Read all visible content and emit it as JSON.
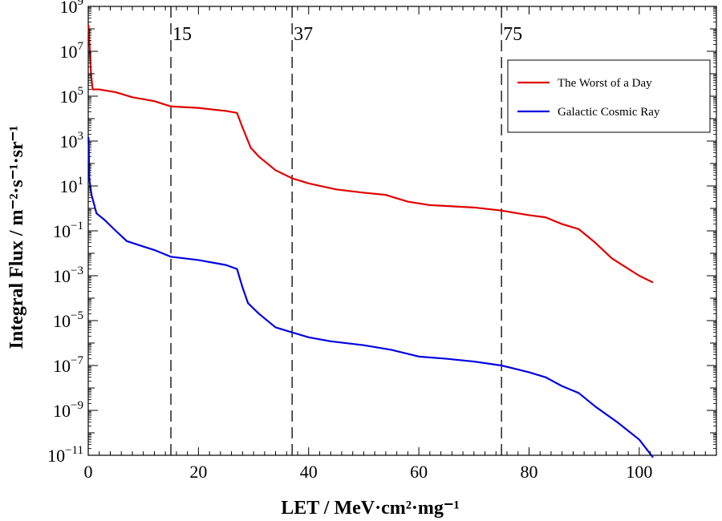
{
  "chart_data": {
    "type": "line",
    "xlabel": "LET / MeV·cm²·mg⁻¹",
    "ylabel": "Integral Flux / m⁻²·s⁻¹·sr⁻¹",
    "xlim": [
      0,
      114
    ],
    "ylim_log10": [
      -11,
      9
    ],
    "y_scale": "log",
    "grid": false,
    "legend_position": "top-right",
    "x_ticks": [
      {
        "value": 0,
        "label": "0"
      },
      {
        "value": 20,
        "label": "20"
      },
      {
        "value": 40,
        "label": "40"
      },
      {
        "value": 60,
        "label": "60"
      },
      {
        "value": 80,
        "label": "80"
      },
      {
        "value": 100,
        "label": "100"
      }
    ],
    "y_ticks": [
      {
        "exp": 9,
        "base": "10",
        "sup": "9"
      },
      {
        "exp": 7,
        "base": "10",
        "sup": "7"
      },
      {
        "exp": 5,
        "base": "10",
        "sup": "5"
      },
      {
        "exp": 3,
        "base": "10",
        "sup": "3"
      },
      {
        "exp": 1,
        "base": "10",
        "sup": "1"
      },
      {
        "exp": -1,
        "base": "10",
        "sup": "−1"
      },
      {
        "exp": -3,
        "base": "10",
        "sup": "−3"
      },
      {
        "exp": -5,
        "base": "10",
        "sup": "−5"
      },
      {
        "exp": -7,
        "base": "10",
        "sup": "−7"
      },
      {
        "exp": -9,
        "base": "10",
        "sup": "−9"
      },
      {
        "exp": -11,
        "base": "10",
        "sup": "−11"
      }
    ],
    "markers": [
      {
        "x": 15,
        "label": "15"
      },
      {
        "x": 37,
        "label": "37"
      },
      {
        "x": 75,
        "label": "75"
      }
    ],
    "series": [
      {
        "name": "The Worst of a Day",
        "color": "#e00000",
        "points": [
          [
            0.05,
            150000000.0
          ],
          [
            0.3,
            10000000.0
          ],
          [
            0.5,
            1000000.0
          ],
          [
            0.8,
            200000.0
          ],
          [
            2,
            200000.0
          ],
          [
            5,
            150000.0
          ],
          [
            8,
            90000.0
          ],
          [
            12,
            60000.0
          ],
          [
            15,
            35000.0
          ],
          [
            20,
            30000.0
          ],
          [
            25,
            22000.0
          ],
          [
            27,
            18000.0
          ],
          [
            28,
            4000.0
          ],
          [
            29.5,
            500.0
          ],
          [
            31,
            200.0
          ],
          [
            34,
            50.0
          ],
          [
            37,
            22.0
          ],
          [
            40,
            13.0
          ],
          [
            45,
            7
          ],
          [
            50,
            5
          ],
          [
            54,
            4
          ],
          [
            58,
            2
          ],
          [
            62,
            1.4
          ],
          [
            70,
            1.1
          ],
          [
            75,
            0.8
          ],
          [
            80,
            0.5
          ],
          [
            83,
            0.4
          ],
          [
            86,
            0.2
          ],
          [
            89,
            0.12
          ],
          [
            92,
            0.03
          ],
          [
            95,
            0.006
          ],
          [
            100,
            0.001
          ],
          [
            102.5,
            0.0005
          ]
        ]
      },
      {
        "name": "Galactic Cosmic Ray",
        "color": "#0000e0",
        "points": [
          [
            0.05,
            1500
          ],
          [
            0.2,
            20
          ],
          [
            0.6,
            4
          ],
          [
            1.5,
            0.6
          ],
          [
            3,
            0.3
          ],
          [
            5,
            0.1
          ],
          [
            7,
            0.035
          ],
          [
            10,
            0.02
          ],
          [
            12,
            0.014
          ],
          [
            15,
            0.007
          ],
          [
            20,
            0.005
          ],
          [
            25,
            0.003
          ],
          [
            27,
            0.002
          ],
          [
            28,
            0.0003
          ],
          [
            29,
            6e-05
          ],
          [
            31,
            2e-05
          ],
          [
            34,
            5e-06
          ],
          [
            37,
            3e-06
          ],
          [
            40,
            1.8e-06
          ],
          [
            44,
            1.2e-06
          ],
          [
            50,
            8e-07
          ],
          [
            55,
            5e-07
          ],
          [
            60,
            2.5e-07
          ],
          [
            65,
            2e-07
          ],
          [
            70,
            1.5e-07
          ],
          [
            75,
            1e-07
          ],
          [
            80,
            5e-08
          ],
          [
            83,
            3e-08
          ],
          [
            86,
            1.2e-08
          ],
          [
            89,
            6e-09
          ],
          [
            92,
            1.5e-09
          ],
          [
            96,
            3e-10
          ],
          [
            100,
            5e-11
          ],
          [
            102.5,
            8e-12
          ]
        ]
      }
    ]
  }
}
